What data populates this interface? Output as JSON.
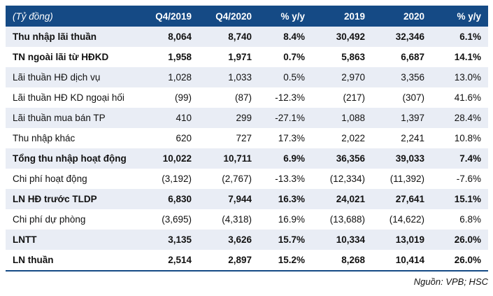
{
  "colors": {
    "header_bg": "#154A85",
    "header_text": "#FFFFFF",
    "stripe_bg": "#E9EDF5",
    "body_text": "#111111",
    "bottom_rule": "#154A85"
  },
  "table": {
    "unit_label": "(Tỷ đồng)",
    "columns": [
      "Q4/2019",
      "Q4/2020",
      "% y/y",
      "2019",
      "2020",
      "% y/y"
    ],
    "rows": [
      {
        "label": "Thu nhập lãi thuần",
        "bold": true,
        "values": [
          "8,064",
          "8,740",
          "8.4%",
          "30,492",
          "32,346",
          "6.1%"
        ]
      },
      {
        "label": "TN ngoài lãi từ HĐKD",
        "bold": true,
        "values": [
          "1,958",
          "1,971",
          "0.7%",
          "5,863",
          "6,687",
          "14.1%"
        ]
      },
      {
        "label": "Lãi thuần HĐ dịch vụ",
        "bold": false,
        "values": [
          "1,028",
          "1,033",
          "0.5%",
          "2,970",
          "3,356",
          "13.0%"
        ]
      },
      {
        "label": "Lãi thuần HĐ KD ngoại hối",
        "bold": false,
        "values": [
          "(99)",
          "(87)",
          "-12.3%",
          "(217)",
          "(307)",
          "41.6%"
        ]
      },
      {
        "label": "Lãi thuần mua bán TP",
        "bold": false,
        "values": [
          "410",
          "299",
          "-27.1%",
          "1,088",
          "1,397",
          "28.4%"
        ]
      },
      {
        "label": "Thu nhập khác",
        "bold": false,
        "values": [
          "620",
          "727",
          "17.3%",
          "2,022",
          "2,241",
          "10.8%"
        ]
      },
      {
        "label": "Tổng thu nhập hoạt động",
        "bold": true,
        "values": [
          "10,022",
          "10,711",
          "6.9%",
          "36,356",
          "39,033",
          "7.4%"
        ]
      },
      {
        "label": "Chi phí hoạt động",
        "bold": false,
        "values": [
          "(3,192)",
          "(2,767)",
          "-13.3%",
          "(12,334)",
          "(11,392)",
          "-7.6%"
        ]
      },
      {
        "label": "LN HĐ trước TLDP",
        "bold": true,
        "values": [
          "6,830",
          "7,944",
          "16.3%",
          "24,021",
          "27,641",
          "15.1%"
        ]
      },
      {
        "label": "Chi phí dự phòng",
        "bold": false,
        "values": [
          "(3,695)",
          "(4,318)",
          "16.9%",
          "(13,688)",
          "(14,622)",
          "6.8%"
        ]
      },
      {
        "label": "LNTT",
        "bold": true,
        "values": [
          "3,135",
          "3,626",
          "15.7%",
          "10,334",
          "13,019",
          "26.0%"
        ]
      },
      {
        "label": "LN thuần",
        "bold": true,
        "values": [
          "2,514",
          "2,897",
          "15.2%",
          "8,268",
          "10,414",
          "26.0%"
        ]
      }
    ]
  },
  "footer": {
    "source": "Nguồn: VPB; HSC"
  }
}
